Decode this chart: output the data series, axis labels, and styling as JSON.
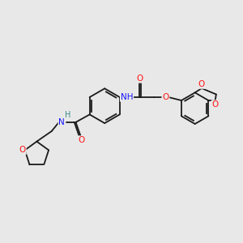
{
  "bg_color": "#e8e8e8",
  "bond_color": "#1a1a1a",
  "bond_width": 1.3,
  "atom_colors": {
    "N": "#1414ff",
    "O": "#ff1414",
    "H": "#3a8a8a"
  },
  "font_size": 7.5,
  "fig_size": [
    3.0,
    3.0
  ],
  "dpi": 100
}
